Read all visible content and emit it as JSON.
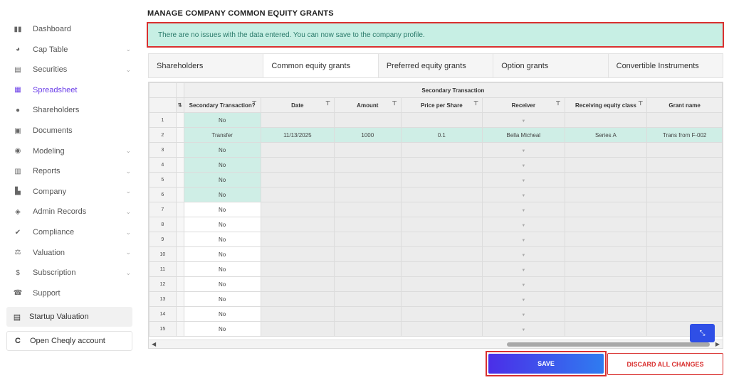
{
  "sidebar": {
    "items": [
      {
        "label": "Dashboard",
        "icon": "dashboard-icon",
        "glyph": "▮▮",
        "chevron": false,
        "active": false
      },
      {
        "label": "Cap Table",
        "icon": "pie-chart-icon",
        "glyph": "◕",
        "chevron": true,
        "active": false
      },
      {
        "label": "Securities",
        "icon": "clipboard-icon",
        "glyph": "▤",
        "chevron": true,
        "active": false
      },
      {
        "label": "Spreadsheet",
        "icon": "spreadsheet-icon",
        "glyph": "▦",
        "chevron": false,
        "active": true
      },
      {
        "label": "Shareholders",
        "icon": "person-icon",
        "glyph": "●",
        "chevron": false,
        "active": false
      },
      {
        "label": "Documents",
        "icon": "folder-icon",
        "glyph": "▣",
        "chevron": false,
        "active": false
      },
      {
        "label": "Modeling",
        "icon": "bulb-icon",
        "glyph": "◉",
        "chevron": true,
        "active": false
      },
      {
        "label": "Reports",
        "icon": "report-icon",
        "glyph": "▥",
        "chevron": true,
        "active": false
      },
      {
        "label": "Company",
        "icon": "building-icon",
        "glyph": "▙",
        "chevron": true,
        "active": false
      },
      {
        "label": "Admin Records",
        "icon": "admin-icon",
        "glyph": "◈",
        "chevron": true,
        "active": false
      },
      {
        "label": "Compliance",
        "icon": "check-badge-icon",
        "glyph": "✔",
        "chevron": true,
        "active": false
      },
      {
        "label": "Valuation",
        "icon": "scale-icon",
        "glyph": "⚖",
        "chevron": true,
        "active": false
      },
      {
        "label": "Subscription",
        "icon": "dollar-icon",
        "glyph": "$",
        "chevron": true,
        "active": false
      },
      {
        "label": "Support",
        "icon": "support-icon",
        "glyph": "☎",
        "chevron": false,
        "active": false
      }
    ],
    "startup_label": "Startup Valuation",
    "cheqly_label": "Open Cheqly account"
  },
  "page": {
    "title": "MANAGE COMPANY COMMON EQUITY GRANTS",
    "alert": "There are no issues with the data entered. You can now save to the company profile."
  },
  "tabs": [
    "Shareholders",
    "Common equity grants",
    "Preferred equity grants",
    "Option grants",
    "Convertible Instruments"
  ],
  "active_tab": 1,
  "grid": {
    "group_header": "Secondary Transaction",
    "columns": [
      "Secondary Transaction?",
      "Date",
      "Amount",
      "Price per Share",
      "Receiver",
      "Receiving equity class",
      "Grant name"
    ],
    "rows": [
      {
        "num": "1",
        "secondary": "No",
        "date": "",
        "amount": "",
        "price": "",
        "receiver": "",
        "class": "",
        "grant": ""
      },
      {
        "num": "2",
        "secondary": "Transfer",
        "date": "11/13/2025",
        "amount": "1000",
        "price": "0.1",
        "receiver": "Bella Micheal",
        "class": "Series A",
        "grant": "Trans from F-002"
      },
      {
        "num": "3",
        "secondary": "No",
        "date": "",
        "amount": "",
        "price": "",
        "receiver": "",
        "class": "",
        "grant": ""
      },
      {
        "num": "4",
        "secondary": "No",
        "date": "",
        "amount": "",
        "price": "",
        "receiver": "",
        "class": "",
        "grant": ""
      },
      {
        "num": "5",
        "secondary": "No",
        "date": "",
        "amount": "",
        "price": "",
        "receiver": "",
        "class": "",
        "grant": ""
      },
      {
        "num": "6",
        "secondary": "No",
        "date": "",
        "amount": "",
        "price": "",
        "receiver": "",
        "class": "",
        "grant": ""
      },
      {
        "num": "7",
        "secondary": "No",
        "date": "",
        "amount": "",
        "price": "",
        "receiver": "",
        "class": "",
        "grant": ""
      },
      {
        "num": "8",
        "secondary": "No",
        "date": "",
        "amount": "",
        "price": "",
        "receiver": "",
        "class": "",
        "grant": ""
      },
      {
        "num": "9",
        "secondary": "No",
        "date": "",
        "amount": "",
        "price": "",
        "receiver": "",
        "class": "",
        "grant": ""
      },
      {
        "num": "10",
        "secondary": "No",
        "date": "",
        "amount": "",
        "price": "",
        "receiver": "",
        "class": "",
        "grant": ""
      },
      {
        "num": "11",
        "secondary": "No",
        "date": "",
        "amount": "",
        "price": "",
        "receiver": "",
        "class": "",
        "grant": ""
      },
      {
        "num": "12",
        "secondary": "No",
        "date": "",
        "amount": "",
        "price": "",
        "receiver": "",
        "class": "",
        "grant": ""
      },
      {
        "num": "13",
        "secondary": "No",
        "date": "",
        "amount": "",
        "price": "",
        "receiver": "",
        "class": "",
        "grant": ""
      },
      {
        "num": "14",
        "secondary": "No",
        "date": "",
        "amount": "",
        "price": "",
        "receiver": "",
        "class": "",
        "grant": ""
      },
      {
        "num": "15",
        "secondary": "No",
        "date": "",
        "amount": "",
        "price": "",
        "receiver": "",
        "class": "",
        "grant": ""
      }
    ]
  },
  "buttons": {
    "save": "SAVE",
    "discard": "DISCARD ALL CHANGES"
  },
  "colors": {
    "accent": "#6b3ee8",
    "alert_bg": "#c7efe4",
    "highlight_row": "#cfeee6",
    "danger": "#d9302f",
    "save_gradient_start": "#4b2ee8",
    "save_gradient_end": "#2f7cf0"
  }
}
